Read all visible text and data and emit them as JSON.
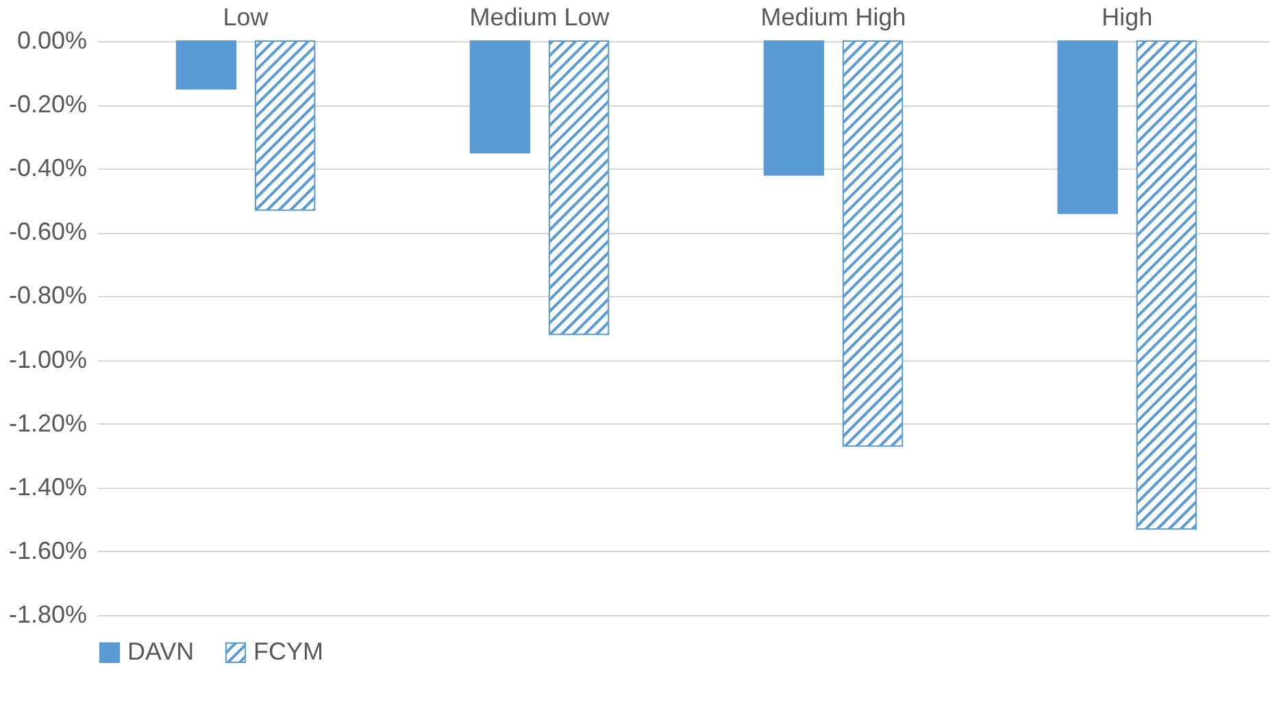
{
  "chart_data": {
    "type": "bar",
    "categories": [
      "Low",
      "Medium Low",
      "Medium High",
      "High"
    ],
    "series": [
      {
        "name": "DAVN",
        "color": "#5b9bd5",
        "values": [
          -0.15,
          -0.35,
          -0.42,
          -0.54
        ]
      },
      {
        "name": "FCYM",
        "color": "#5b9bd5",
        "values": [
          -0.53,
          -0.92,
          -1.27,
          -1.53
        ]
      }
    ],
    "ylim": [
      -1.8,
      0
    ],
    "yticks": [
      {
        "value": 0,
        "label": "0.00%"
      },
      {
        "value": -0.2,
        "label": "-0.20%"
      },
      {
        "value": -0.4,
        "label": "-0.40%"
      },
      {
        "value": -0.6,
        "label": "-0.60%"
      },
      {
        "value": -0.8,
        "label": "-0.80%"
      },
      {
        "value": -1,
        "label": "-1.00%"
      },
      {
        "value": -1.2,
        "label": "-1.20%"
      },
      {
        "value": -1.4,
        "label": "-1.40%"
      },
      {
        "value": -1.6,
        "label": "-1.60%"
      },
      {
        "value": -1.8,
        "label": "-1.80%"
      }
    ],
    "grid": "y",
    "legend": "bottom"
  }
}
